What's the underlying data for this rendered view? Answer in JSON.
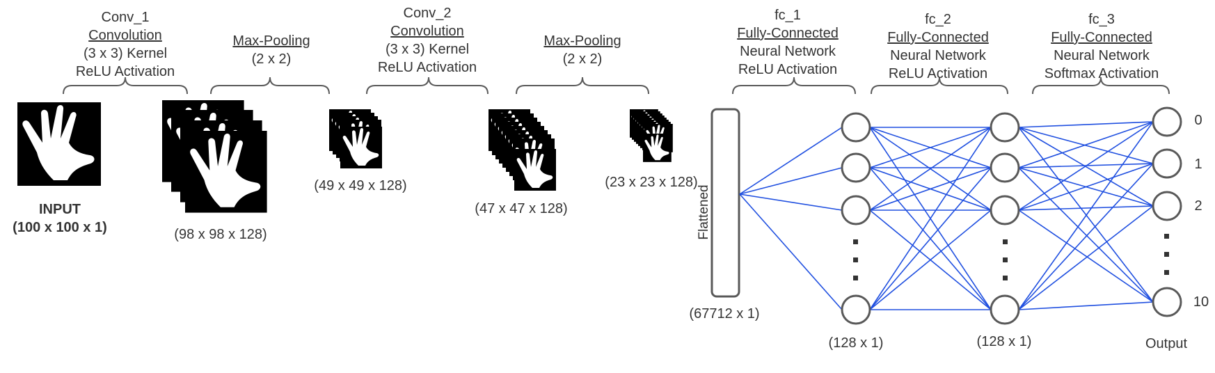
{
  "stages": {
    "conv1": {
      "name": "Conv_1",
      "type": "Convolution",
      "kernel": "(3 x 3) Kernel",
      "activation": "ReLU Activation"
    },
    "pool1": {
      "type": "Max-Pooling",
      "size": "(2 x 2)"
    },
    "conv2": {
      "name": "Conv_2",
      "type": "Convolution",
      "kernel": "(3 x 3) Kernel",
      "activation": "ReLU Activation"
    },
    "pool2": {
      "type": "Max-Pooling",
      "size": "(2 x 2)"
    },
    "fc1": {
      "name": "fc_1",
      "type": "Fully-Connected",
      "network": "Neural Network",
      "activation": "ReLU Activation"
    },
    "fc2": {
      "name": "fc_2",
      "type": "Fully-Connected",
      "network": "Neural Network",
      "activation": "ReLU Activation"
    },
    "fc3": {
      "name": "fc_3",
      "type": "Fully-Connected",
      "network": "Neural Network",
      "activation": "Softmax Activation"
    }
  },
  "dims": {
    "input_title": "INPUT",
    "input": "(100 x 100 x 1)",
    "conv1": "(98 x 98 x 128)",
    "pool1": "(49 x 49 x 128)",
    "conv2": "(47 x 47 x 128)",
    "pool2": "(23 x 23 x 128)",
    "flattened": "(67712 x 1)",
    "fc1": "(128 x 1)",
    "fc2": "(128 x 1)"
  },
  "flattened_label": "Flattened",
  "output_label": "Output",
  "output_classes": [
    "0",
    "1",
    "2",
    "10"
  ],
  "colors": {
    "connection": "#1f4fe0",
    "node_stroke": "#595959",
    "text": "#333333",
    "image_bg": "#000000",
    "hand": "#ffffff"
  }
}
